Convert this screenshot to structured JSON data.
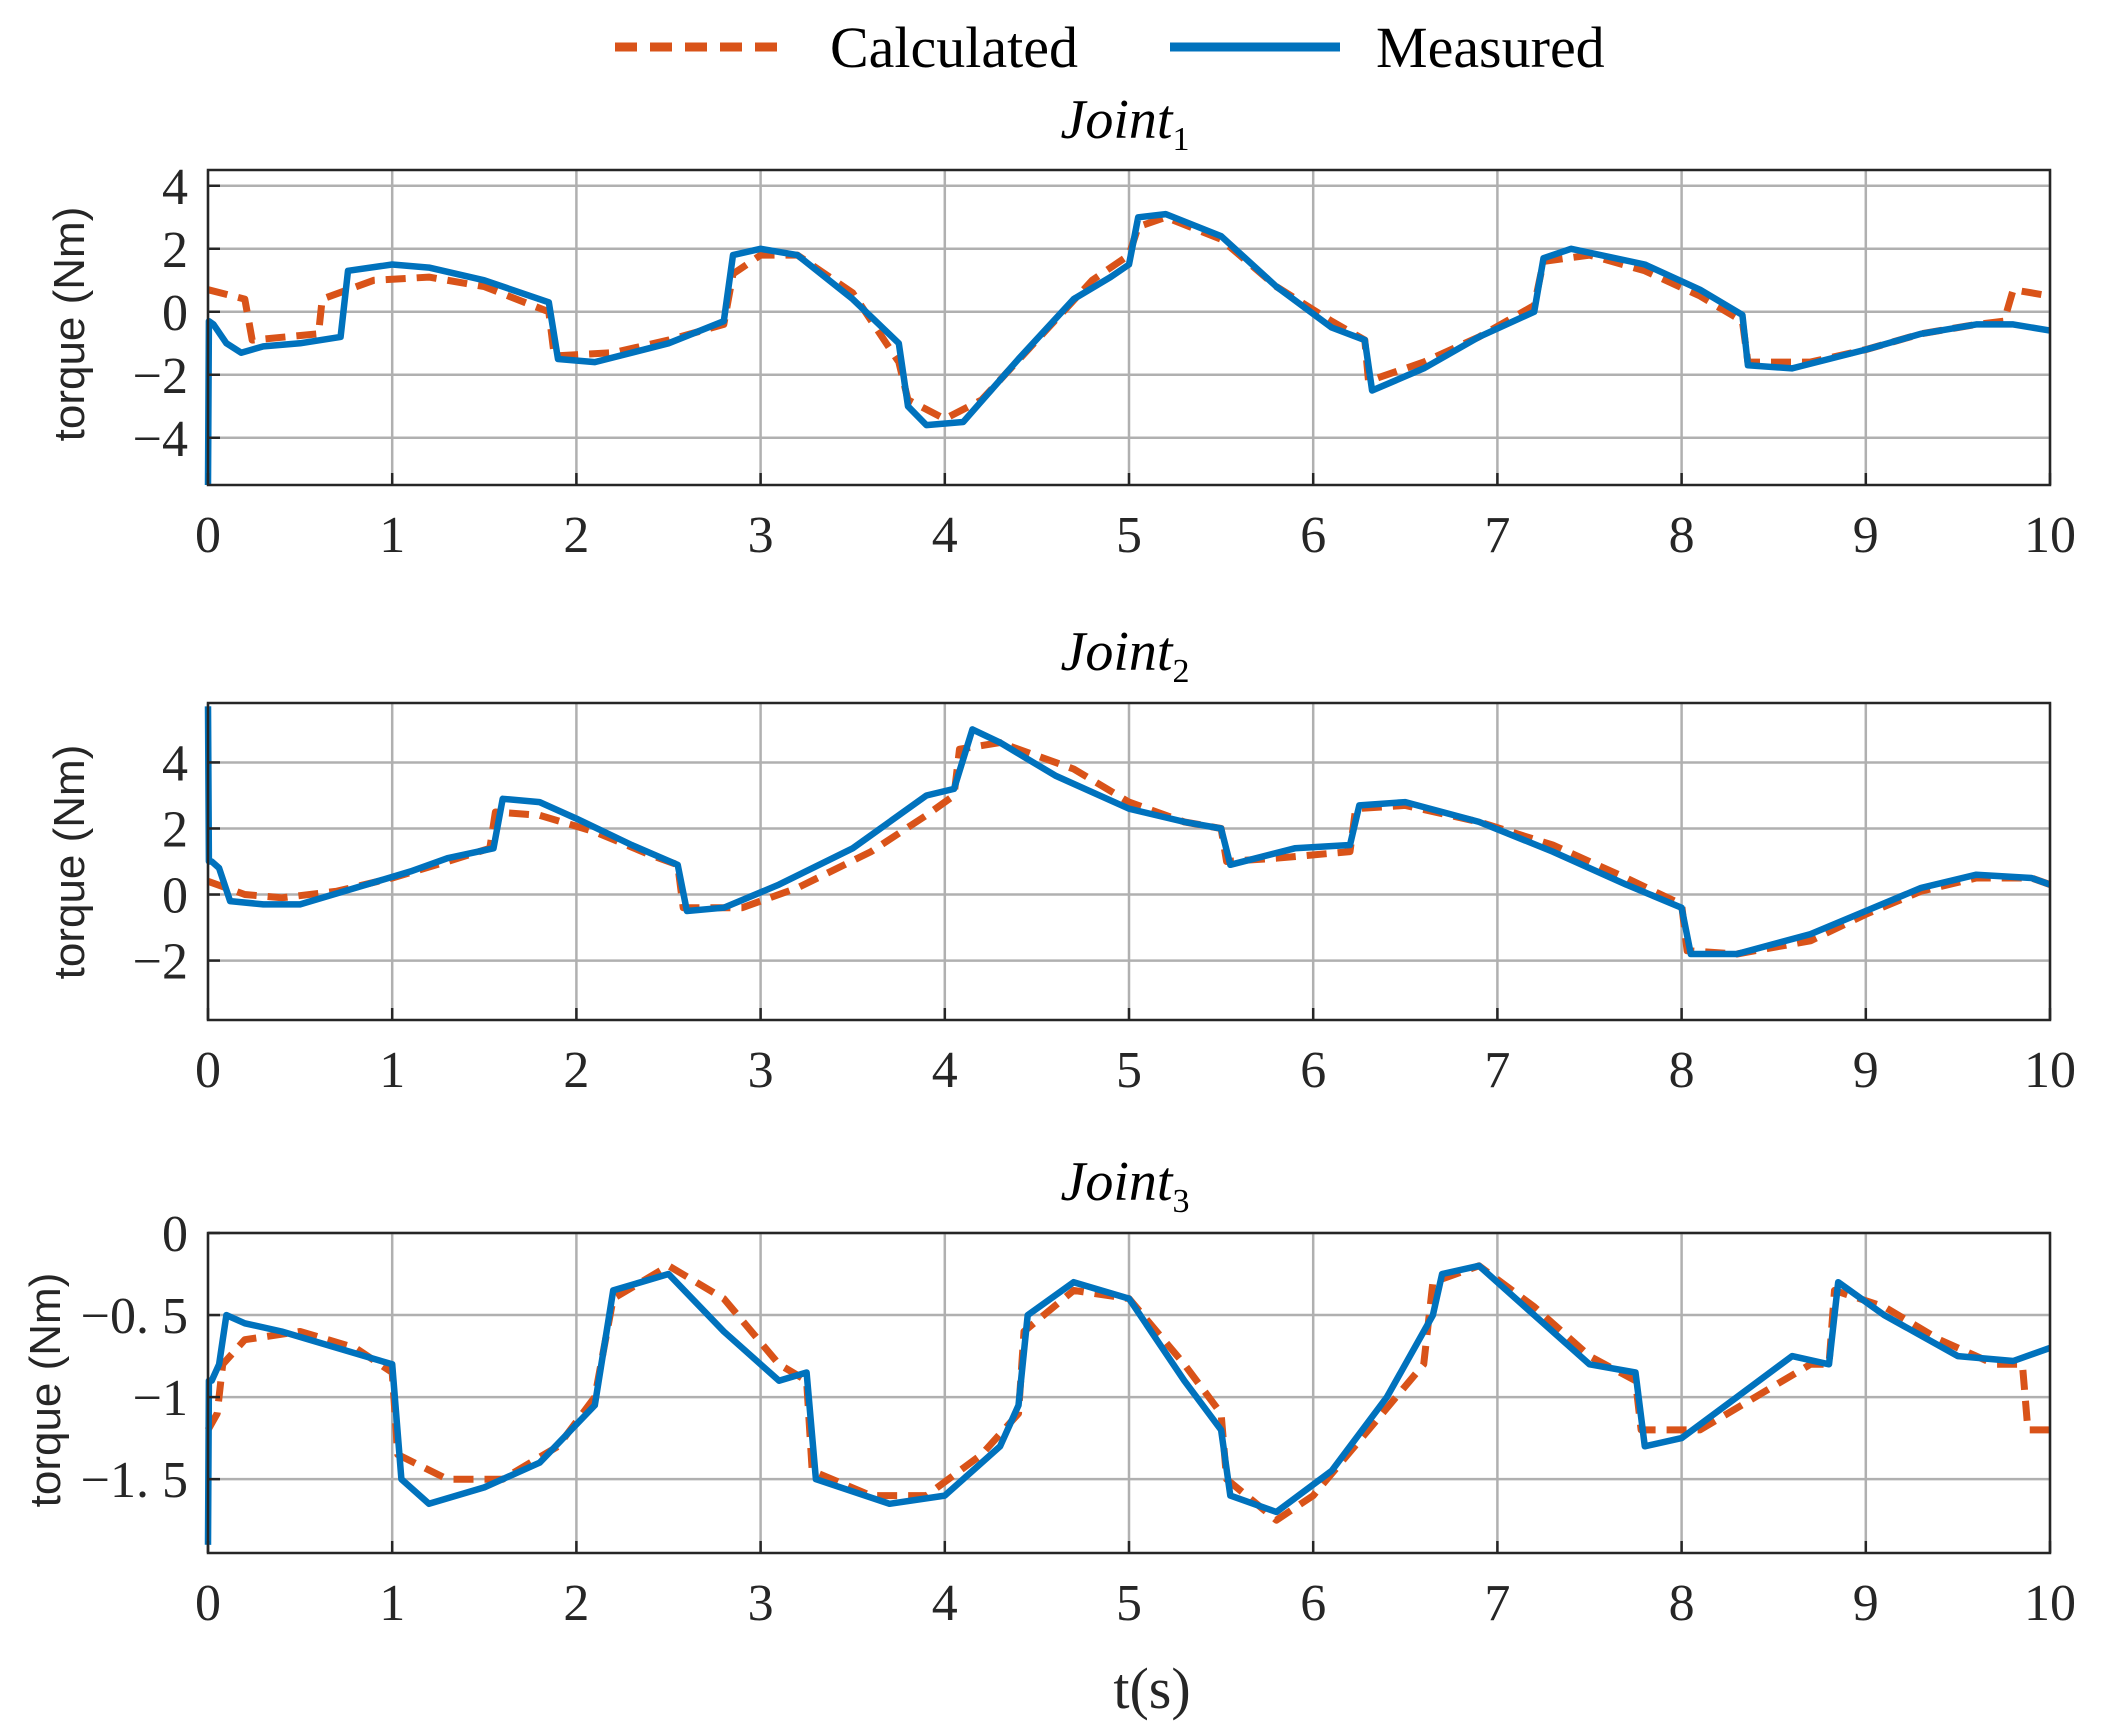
{
  "legend": [
    {
      "name": "Calculated",
      "color": "#D95319",
      "style": "dashed"
    },
    {
      "name": "Measured",
      "color": "#0072BD",
      "style": "solid"
    }
  ],
  "xlabel": "t(s)",
  "chart_data": [
    {
      "type": "line",
      "title": "Joint",
      "title_sub": "1",
      "ylabel": "torque (Nm)",
      "xlim": [
        0,
        10
      ],
      "ylim": [
        -5.5,
        4.5
      ],
      "xticks": [
        0,
        1,
        2,
        3,
        4,
        5,
        6,
        7,
        8,
        9,
        10
      ],
      "xtick_labels": [
        "0",
        "1",
        "2",
        "3",
        "4",
        "5",
        "6",
        "7",
        "8",
        "9",
        "10"
      ],
      "yticks": [
        -4,
        -2,
        0,
        2,
        4
      ],
      "ytick_labels": [
        "−4",
        "−2",
        "0",
        "2",
        "4"
      ],
      "series": [
        {
          "name": "Calculated",
          "color": "#D95319",
          "dashed": true,
          "x": [
            0,
            0.2,
            0.24,
            0.6,
            0.62,
            0.9,
            1.2,
            1.5,
            1.85,
            1.88,
            2.2,
            2.5,
            2.8,
            2.85,
            3.0,
            3.2,
            3.5,
            3.75,
            3.8,
            4.0,
            4.2,
            4.5,
            4.8,
            5.0,
            5.05,
            5.2,
            5.5,
            5.8,
            6.1,
            6.28,
            6.3,
            6.6,
            6.9,
            7.2,
            7.25,
            7.5,
            7.8,
            8.1,
            8.33,
            8.36,
            8.7,
            9.0,
            9.3,
            9.6,
            9.75,
            9.8,
            10.0
          ],
          "y": [
            0.7,
            0.4,
            -0.9,
            -0.7,
            0.4,
            1.0,
            1.1,
            0.8,
            0.0,
            -1.4,
            -1.3,
            -0.9,
            -0.4,
            1.2,
            1.8,
            1.8,
            0.6,
            -1.6,
            -2.8,
            -3.4,
            -2.8,
            -0.9,
            1.0,
            1.8,
            2.7,
            3.0,
            2.3,
            0.8,
            -0.3,
            -0.9,
            -2.2,
            -1.6,
            -0.8,
            0.2,
            1.6,
            1.8,
            1.3,
            0.5,
            -0.3,
            -1.6,
            -1.6,
            -1.2,
            -0.7,
            -0.4,
            -0.3,
            0.7,
            0.5
          ]
        },
        {
          "name": "Measured",
          "color": "#0072BD",
          "dashed": false,
          "x": [
            0,
            0.005,
            0.03,
            0.1,
            0.18,
            0.3,
            0.5,
            0.72,
            0.76,
            1.0,
            1.2,
            1.5,
            1.85,
            1.9,
            2.1,
            2.5,
            2.8,
            2.85,
            3.0,
            3.2,
            3.5,
            3.75,
            3.8,
            3.9,
            4.1,
            4.4,
            4.7,
            4.9,
            5.0,
            5.05,
            5.2,
            5.5,
            5.8,
            6.1,
            6.28,
            6.32,
            6.6,
            6.9,
            7.2,
            7.25,
            7.4,
            7.8,
            8.1,
            8.33,
            8.36,
            8.6,
            9.0,
            9.3,
            9.6,
            9.8,
            10.0
          ],
          "y": [
            -5.5,
            -0.3,
            -0.4,
            -1.0,
            -1.3,
            -1.1,
            -1.0,
            -0.8,
            1.3,
            1.5,
            1.4,
            1.0,
            0.3,
            -1.5,
            -1.6,
            -1.0,
            -0.3,
            1.8,
            2.0,
            1.8,
            0.4,
            -1.0,
            -3.0,
            -3.6,
            -3.5,
            -1.5,
            0.4,
            1.1,
            1.5,
            3.0,
            3.1,
            2.4,
            0.8,
            -0.5,
            -0.9,
            -2.5,
            -1.8,
            -0.8,
            0.0,
            1.7,
            2.0,
            1.5,
            0.7,
            -0.1,
            -1.7,
            -1.8,
            -1.2,
            -0.7,
            -0.4,
            -0.4,
            -0.6
          ]
        }
      ]
    },
    {
      "type": "line",
      "title": "Joint",
      "title_sub": "2",
      "ylabel": "torque (Nm)",
      "xlim": [
        0,
        10
      ],
      "ylim": [
        -3.8,
        5.8
      ],
      "xticks": [
        0,
        1,
        2,
        3,
        4,
        5,
        6,
        7,
        8,
        9,
        10
      ],
      "xtick_labels": [
        "0",
        "1",
        "2",
        "3",
        "4",
        "5",
        "6",
        "7",
        "8",
        "9",
        "10"
      ],
      "yticks": [
        -2,
        0,
        2,
        4
      ],
      "ytick_labels": [
        "−2",
        "0",
        "2",
        "4"
      ],
      "series": [
        {
          "name": "Calculated",
          "color": "#D95319",
          "dashed": true,
          "x": [
            0,
            0.2,
            0.4,
            0.7,
            1.0,
            1.3,
            1.53,
            1.56,
            1.8,
            2.1,
            2.4,
            2.55,
            2.58,
            2.9,
            3.2,
            3.6,
            3.9,
            4.05,
            4.08,
            4.3,
            4.7,
            5.0,
            5.3,
            5.5,
            5.53,
            5.8,
            6.2,
            6.23,
            6.5,
            6.9,
            7.3,
            7.7,
            8.0,
            8.03,
            8.3,
            8.7,
            9.0,
            9.3,
            9.6,
            9.9,
            10.0
          ],
          "y": [
            0.4,
            0.0,
            -0.1,
            0.1,
            0.5,
            1.0,
            1.4,
            2.5,
            2.4,
            1.9,
            1.2,
            0.9,
            -0.4,
            -0.4,
            0.2,
            1.3,
            2.4,
            3.0,
            4.4,
            4.6,
            3.8,
            2.8,
            2.2,
            2.0,
            1.0,
            1.1,
            1.3,
            2.6,
            2.7,
            2.2,
            1.5,
            0.5,
            -0.3,
            -1.7,
            -1.8,
            -1.4,
            -0.6,
            0.1,
            0.5,
            0.5,
            0.3
          ]
        },
        {
          "name": "Measured",
          "color": "#0072BD",
          "dashed": false,
          "x": [
            0,
            0.005,
            0.02,
            0.06,
            0.12,
            0.3,
            0.5,
            0.8,
            1.1,
            1.3,
            1.55,
            1.6,
            1.8,
            2.0,
            2.3,
            2.55,
            2.6,
            2.8,
            3.1,
            3.5,
            3.9,
            4.05,
            4.15,
            4.3,
            4.6,
            5.0,
            5.3,
            5.5,
            5.55,
            5.9,
            6.2,
            6.25,
            6.5,
            6.9,
            7.3,
            7.7,
            8.0,
            8.05,
            8.3,
            8.7,
            9.0,
            9.3,
            9.6,
            9.9,
            10.0
          ],
          "y": [
            5.7,
            1.0,
            1.0,
            0.8,
            -0.2,
            -0.3,
            -0.3,
            0.2,
            0.7,
            1.1,
            1.4,
            2.9,
            2.8,
            2.3,
            1.5,
            0.9,
            -0.5,
            -0.4,
            0.3,
            1.4,
            3.0,
            3.2,
            5.0,
            4.6,
            3.6,
            2.6,
            2.2,
            2.0,
            0.9,
            1.4,
            1.5,
            2.7,
            2.8,
            2.2,
            1.3,
            0.3,
            -0.4,
            -1.8,
            -1.8,
            -1.2,
            -0.5,
            0.2,
            0.6,
            0.5,
            0.3
          ]
        }
      ]
    },
    {
      "type": "line",
      "title": "Joint",
      "title_sub": "3",
      "ylabel": "torque (Nm)",
      "xlim": [
        0,
        10
      ],
      "ylim": [
        -1.95,
        0
      ],
      "xticks": [
        0,
        1,
        2,
        3,
        4,
        5,
        6,
        7,
        8,
        9,
        10
      ],
      "xtick_labels": [
        "0",
        "1",
        "2",
        "3",
        "4",
        "5",
        "6",
        "7",
        "8",
        "9",
        "10"
      ],
      "yticks": [
        0,
        -0.5,
        -1,
        -1.5
      ],
      "ytick_labels": [
        "0",
        "−0. 5",
        "−1",
        "−1. 5"
      ],
      "series": [
        {
          "name": "Calculated",
          "color": "#D95319",
          "dashed": true,
          "x": [
            0,
            0.05,
            0.08,
            0.2,
            0.5,
            0.8,
            1.0,
            1.03,
            1.3,
            1.6,
            1.9,
            2.1,
            2.2,
            2.5,
            2.8,
            3.1,
            3.25,
            3.28,
            3.6,
            3.9,
            4.2,
            4.4,
            4.43,
            4.7,
            5.0,
            5.3,
            5.5,
            5.53,
            5.8,
            6.0,
            6.3,
            6.6,
            6.65,
            6.9,
            7.2,
            7.5,
            7.75,
            7.78,
            8.1,
            8.4,
            8.7,
            8.8,
            8.83,
            9.1,
            9.4,
            9.7,
            9.85,
            9.88,
            10.0
          ],
          "y": [
            -1.2,
            -1.1,
            -0.8,
            -0.65,
            -0.6,
            -0.7,
            -0.85,
            -1.35,
            -1.5,
            -1.5,
            -1.3,
            -1.0,
            -0.4,
            -0.2,
            -0.4,
            -0.8,
            -0.9,
            -1.45,
            -1.6,
            -1.6,
            -1.35,
            -1.1,
            -0.6,
            -0.35,
            -0.4,
            -0.8,
            -1.1,
            -1.5,
            -1.75,
            -1.6,
            -1.2,
            -0.8,
            -0.3,
            -0.2,
            -0.45,
            -0.75,
            -0.9,
            -1.2,
            -1.2,
            -1.0,
            -0.8,
            -0.8,
            -0.35,
            -0.45,
            -0.65,
            -0.8,
            -0.8,
            -1.2,
            -1.2
          ]
        },
        {
          "name": "Measured",
          "color": "#0072BD",
          "dashed": false,
          "x": [
            0,
            0.005,
            0.02,
            0.06,
            0.1,
            0.2,
            0.4,
            0.7,
            1.0,
            1.05,
            1.2,
            1.5,
            1.8,
            2.1,
            2.2,
            2.5,
            2.8,
            3.1,
            3.25,
            3.3,
            3.7,
            4.0,
            4.3,
            4.4,
            4.45,
            4.7,
            5.0,
            5.3,
            5.5,
            5.55,
            5.8,
            6.1,
            6.4,
            6.65,
            6.7,
            6.9,
            7.2,
            7.5,
            7.75,
            7.8,
            8.0,
            8.3,
            8.6,
            8.8,
            8.85,
            9.1,
            9.5,
            9.8,
            10.0
          ],
          "y": [
            -1.9,
            -0.9,
            -0.9,
            -0.8,
            -0.5,
            -0.55,
            -0.6,
            -0.7,
            -0.8,
            -1.5,
            -1.65,
            -1.55,
            -1.4,
            -1.05,
            -0.35,
            -0.25,
            -0.6,
            -0.9,
            -0.85,
            -1.5,
            -1.65,
            -1.6,
            -1.3,
            -1.05,
            -0.5,
            -0.3,
            -0.4,
            -0.9,
            -1.2,
            -1.6,
            -1.7,
            -1.45,
            -1.0,
            -0.5,
            -0.25,
            -0.2,
            -0.5,
            -0.8,
            -0.85,
            -1.3,
            -1.25,
            -1.0,
            -0.75,
            -0.8,
            -0.3,
            -0.5,
            -0.75,
            -0.78,
            -0.7
          ]
        }
      ]
    }
  ]
}
